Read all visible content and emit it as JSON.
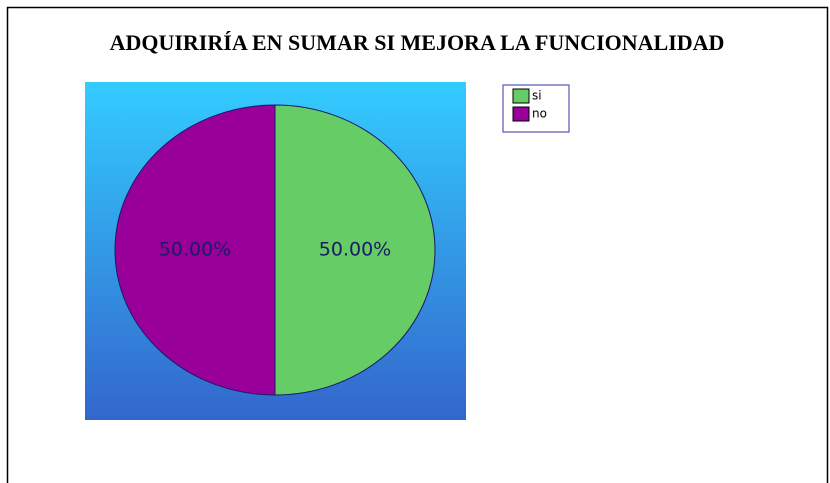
{
  "chart_data": {
    "type": "pie",
    "title": "ADQUIRIRÍA EN SUMAR SI MEJORA LA FUNCIONALIDAD",
    "categories": [
      "si",
      "no"
    ],
    "values": [
      50,
      50
    ],
    "value_labels": [
      "50.00%",
      "50.00%"
    ],
    "colors": [
      "#66cc66",
      "#990099"
    ],
    "legend": "right"
  }
}
